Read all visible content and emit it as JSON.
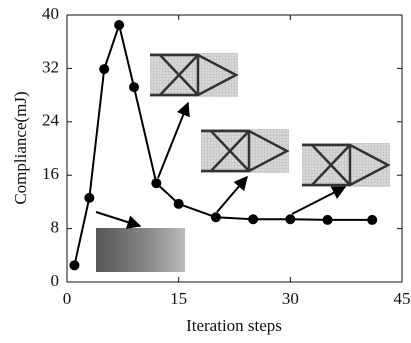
{
  "chart_data": {
    "type": "line",
    "x_label": "Iteration steps",
    "y_label": "Compliance(mJ)",
    "series": [
      {
        "color": "#000000",
        "x": [
          1,
          3,
          5,
          7,
          9,
          12,
          15,
          20,
          25,
          30,
          35,
          41
        ],
        "values": [
          2.5,
          12.6,
          31.9,
          38.5,
          29.2,
          14.8,
          11.7,
          9.7,
          9.4,
          9.4,
          9.3,
          9.3
        ]
      }
    ],
    "xlim": [
      0,
      45
    ],
    "xticks": [
      0,
      15,
      30,
      45
    ],
    "ylim": [
      0,
      40
    ],
    "yticks": [
      0,
      8,
      16,
      24,
      32,
      40
    ],
    "grid": false
  }
}
